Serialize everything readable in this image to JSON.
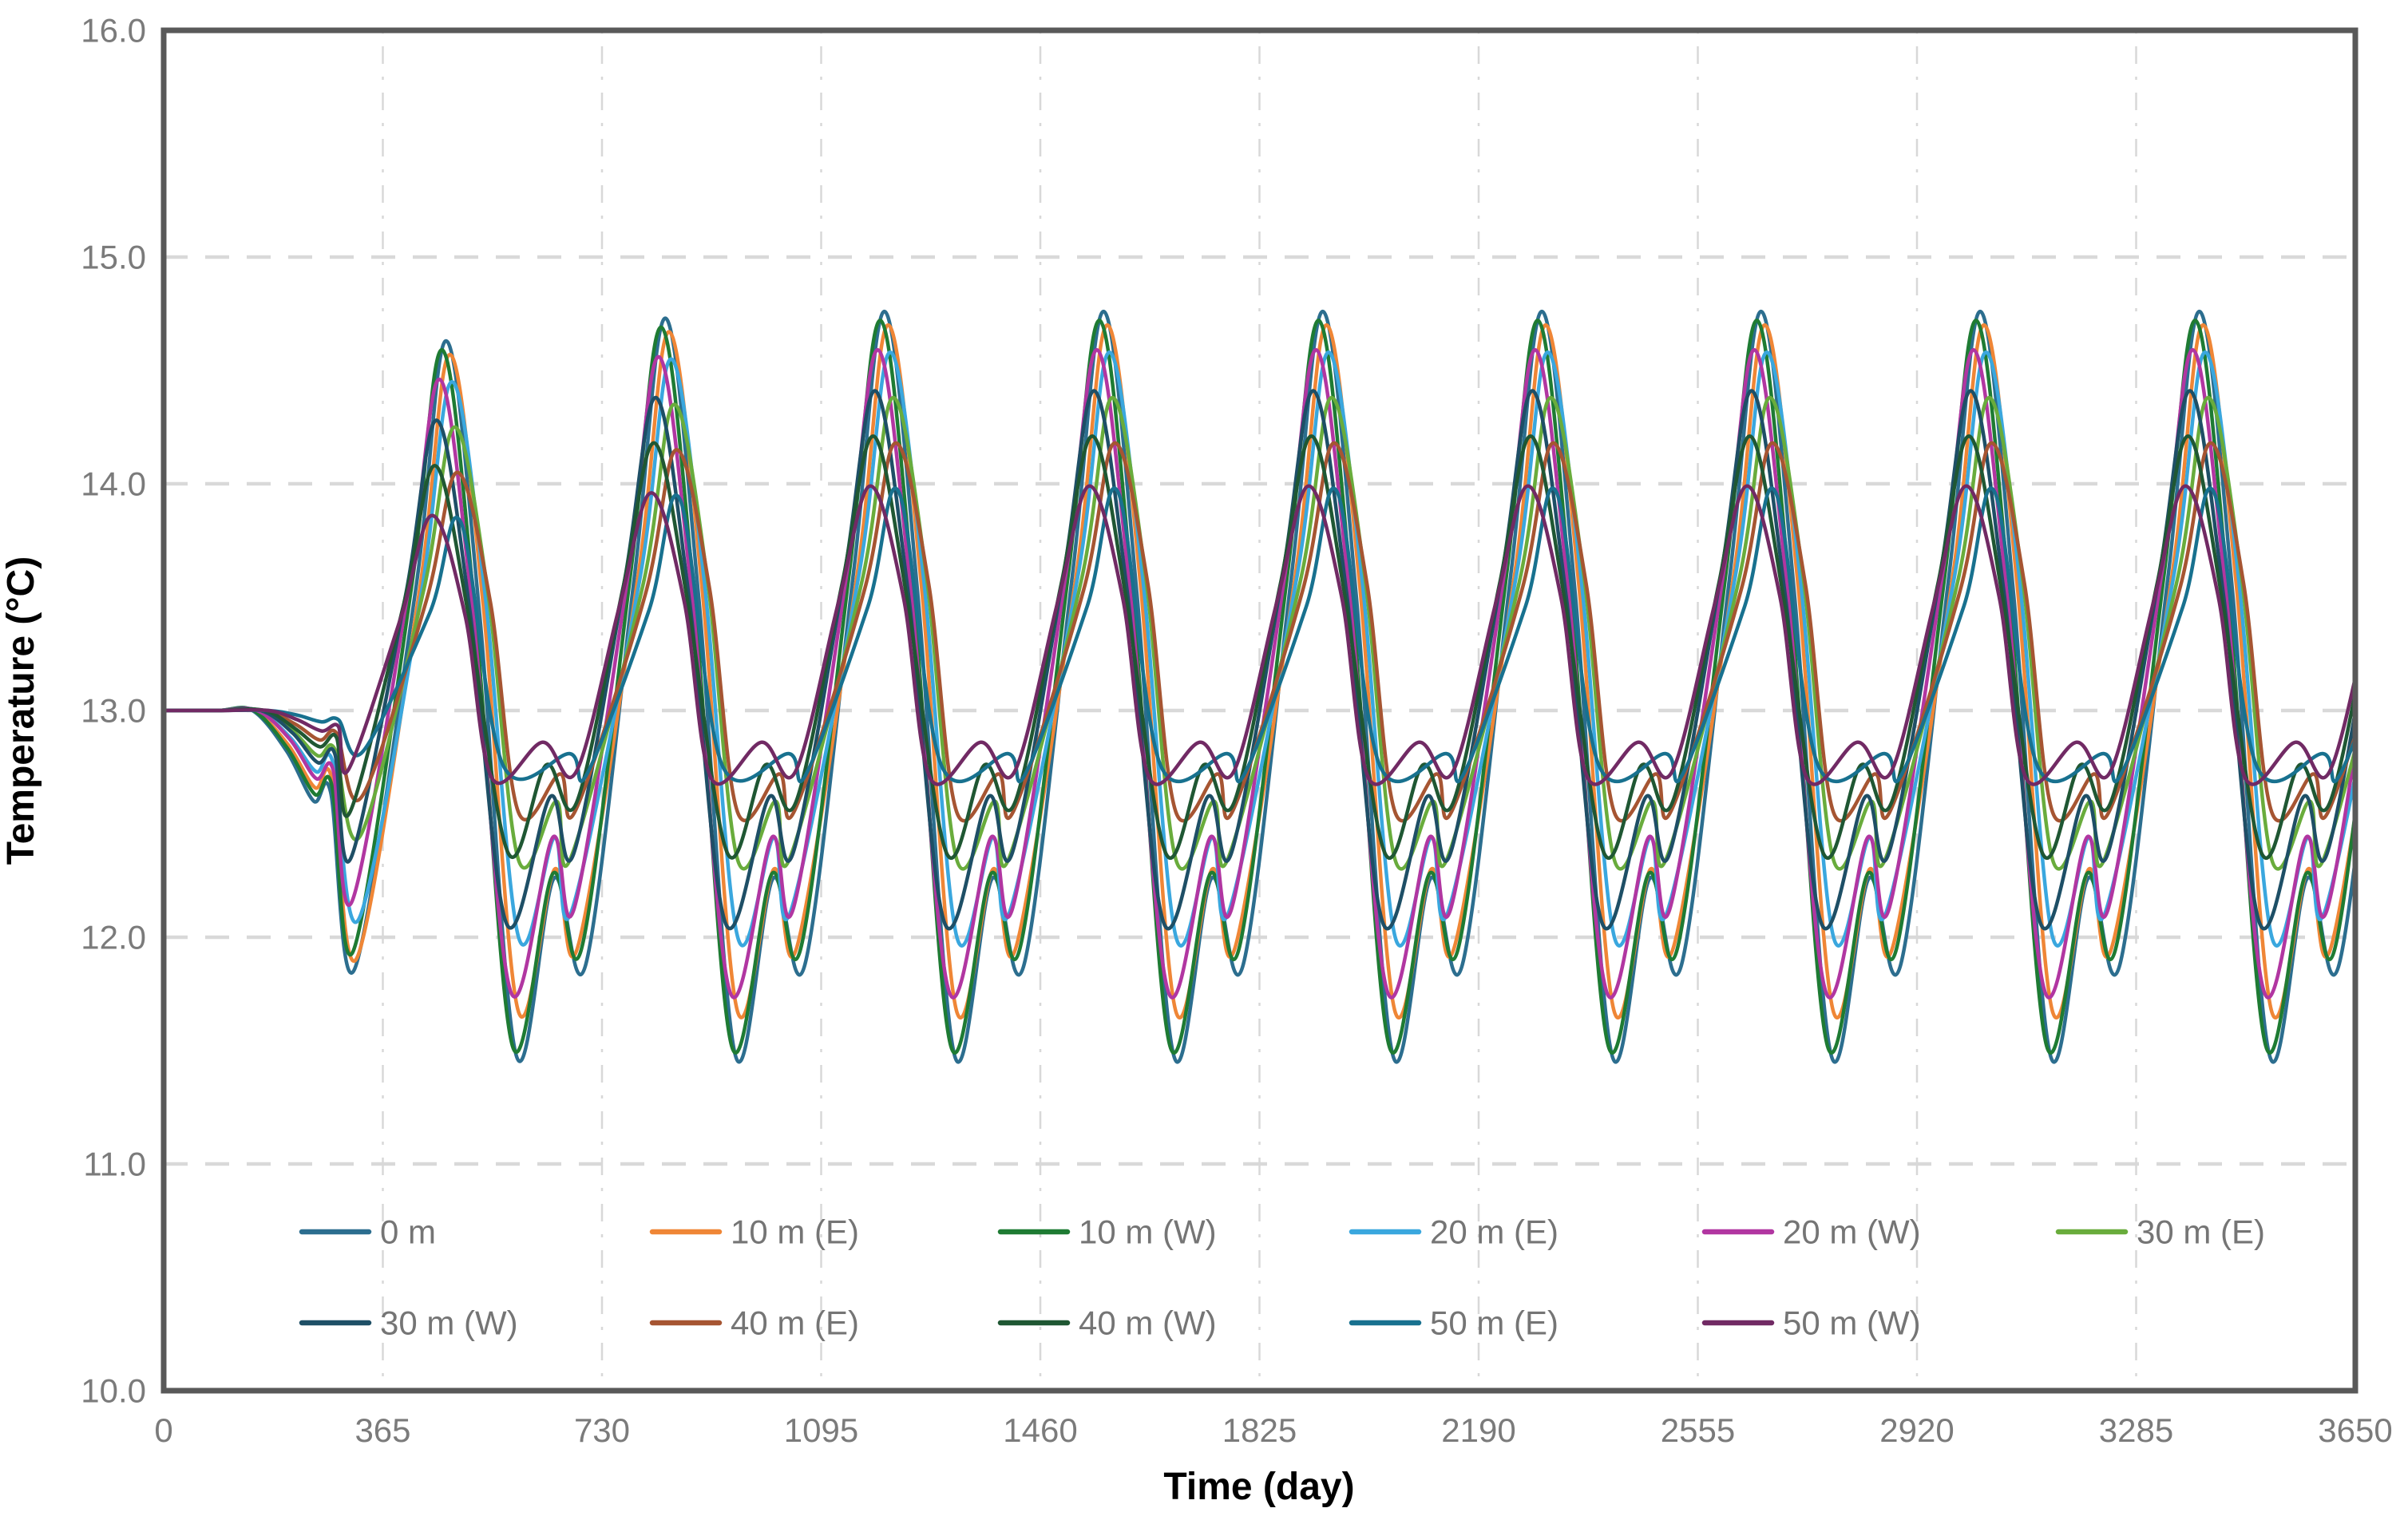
{
  "chart_data": {
    "type": "line",
    "title": "",
    "xlabel": "Time (day)",
    "ylabel": "Temperature (°C)",
    "xlim": [
      0,
      3650
    ],
    "ylim": [
      10,
      16
    ],
    "xticks": [
      0,
      365,
      730,
      1095,
      1460,
      1825,
      2190,
      2555,
      2920,
      3285,
      3650
    ],
    "yticks": [
      "10.0",
      "11.0",
      "12.0",
      "13.0",
      "14.0",
      "15.0",
      "16.0"
    ],
    "grid": {
      "horizontal": "dashed",
      "vertical": "dash-dot"
    },
    "legend_position": "inside-bottom",
    "initial_temperature": 13.0,
    "period_days": 365,
    "years": 10,
    "series": [
      {
        "name": "0 m",
        "color": "#2C6E8F",
        "points_transient": [
          [
            0,
            13
          ],
          [
            90,
            13
          ],
          [
            148,
            13
          ],
          [
            205,
            12.82
          ],
          [
            250,
            12.6
          ],
          [
            278,
            12.64
          ],
          [
            318,
            11.86
          ]
        ],
        "points_year1": [
          [
            419,
            13.52
          ],
          [
            471,
            14.63
          ],
          [
            526,
            13.43
          ],
          [
            587,
            11.48
          ],
          [
            650,
            12.26
          ],
          [
            703,
            11.88
          ]
        ],
        "points_year2": [
          [
            784,
            13.59
          ],
          [
            836,
            14.73
          ],
          [
            891,
            13.5
          ],
          [
            952,
            11.48
          ],
          [
            1015,
            12.26
          ],
          [
            1068,
            11.88
          ]
        ],
        "annual_cycle_rel": [
          [
            54,
            13.61
          ],
          [
            106,
            14.76
          ],
          [
            161,
            13.51
          ],
          [
            222,
            11.48
          ],
          [
            285,
            12.26
          ],
          [
            338,
            11.88
          ]
        ]
      },
      {
        "name": "10 m (E)",
        "color": "#EF8636",
        "points_transient": [
          [
            0,
            13
          ],
          [
            90,
            13
          ],
          [
            150,
            13
          ],
          [
            207,
            12.85
          ],
          [
            252,
            12.66
          ],
          [
            280,
            12.7
          ],
          [
            322,
            11.91
          ]
        ],
        "points_year1": [
          [
            425,
            13.51
          ],
          [
            477,
            14.57
          ],
          [
            532,
            13.47
          ],
          [
            590,
            11.68
          ],
          [
            651,
            12.3
          ],
          [
            690,
            11.96
          ]
        ],
        "points_year2": [
          [
            790,
            13.59
          ],
          [
            842,
            14.67
          ],
          [
            897,
            13.53
          ],
          [
            955,
            11.68
          ],
          [
            1016,
            12.3
          ],
          [
            1055,
            11.96
          ]
        ],
        "annual_cycle_rel": [
          [
            60,
            13.6
          ],
          [
            112,
            14.7
          ],
          [
            167,
            13.55
          ],
          [
            225,
            11.68
          ],
          [
            286,
            12.3
          ],
          [
            325,
            11.96
          ]
        ]
      },
      {
        "name": "10 m (W)",
        "color": "#1E7B33",
        "points_transient": [
          [
            0,
            13
          ],
          [
            90,
            13
          ],
          [
            150,
            13
          ],
          [
            207,
            12.83
          ],
          [
            252,
            12.63
          ],
          [
            280,
            12.67
          ],
          [
            316,
            11.94
          ]
        ],
        "points_year1": [
          [
            412,
            13.53
          ],
          [
            464,
            14.59
          ],
          [
            519,
            13.42
          ],
          [
            581,
            11.52
          ],
          [
            648,
            12.28
          ],
          [
            696,
            11.95
          ]
        ],
        "points_year2": [
          [
            777,
            13.59
          ],
          [
            829,
            14.69
          ],
          [
            884,
            13.49
          ],
          [
            946,
            11.52
          ],
          [
            1013,
            12.28
          ],
          [
            1061,
            11.95
          ]
        ],
        "annual_cycle_rel": [
          [
            47,
            13.61
          ],
          [
            99,
            14.72
          ],
          [
            154,
            13.5
          ],
          [
            216,
            11.52
          ],
          [
            283,
            12.28
          ],
          [
            331,
            11.95
          ]
        ]
      },
      {
        "name": "20 m (E)",
        "color": "#3AA7DE",
        "points_transient": [
          [
            0,
            13
          ],
          [
            90,
            13
          ],
          [
            156,
            13
          ],
          [
            211,
            12.88
          ],
          [
            254,
            12.73
          ],
          [
            282,
            12.77
          ],
          [
            325,
            12.08
          ]
        ],
        "points_year1": [
          [
            428,
            13.5
          ],
          [
            480,
            14.45
          ],
          [
            535,
            13.52
          ],
          [
            591,
            12.0
          ],
          [
            651,
            12.44
          ],
          [
            680,
            12.12
          ]
        ],
        "points_year2": [
          [
            793,
            13.58
          ],
          [
            845,
            14.55
          ],
          [
            900,
            13.58
          ],
          [
            956,
            12.0
          ],
          [
            1016,
            12.44
          ],
          [
            1045,
            12.12
          ]
        ],
        "annual_cycle_rel": [
          [
            63,
            13.6
          ],
          [
            115,
            14.58
          ],
          [
            170,
            13.6
          ],
          [
            226,
            12.0
          ],
          [
            286,
            12.44
          ],
          [
            315,
            12.12
          ]
        ]
      },
      {
        "name": "20 m (W)",
        "color": "#B136A1",
        "points_transient": [
          [
            0,
            13
          ],
          [
            90,
            13
          ],
          [
            156,
            13
          ],
          [
            211,
            12.87
          ],
          [
            254,
            12.7
          ],
          [
            282,
            12.74
          ],
          [
            314,
            12.16
          ]
        ],
        "points_year1": [
          [
            408,
            13.54
          ],
          [
            460,
            14.46
          ],
          [
            515,
            13.43
          ],
          [
            578,
            11.76
          ],
          [
            648,
            12.44
          ],
          [
            684,
            12.13
          ]
        ],
        "points_year2": [
          [
            773,
            13.59
          ],
          [
            825,
            14.56
          ],
          [
            880,
            13.5
          ],
          [
            943,
            11.76
          ],
          [
            1013,
            12.44
          ],
          [
            1049,
            12.13
          ]
        ],
        "annual_cycle_rel": [
          [
            43,
            13.61
          ],
          [
            95,
            14.59
          ],
          [
            150,
            13.51
          ],
          [
            213,
            11.76
          ],
          [
            283,
            12.44
          ],
          [
            319,
            12.13
          ]
        ]
      },
      {
        "name": "30 m (E)",
        "color": "#69AC3C",
        "points_transient": [
          [
            0,
            13
          ],
          [
            90,
            13
          ],
          [
            162,
            13
          ],
          [
            215,
            12.91
          ],
          [
            257,
            12.8
          ],
          [
            285,
            12.83
          ],
          [
            328,
            12.45
          ]
        ],
        "points_year1": [
          [
            433,
            13.53
          ],
          [
            485,
            14.25
          ],
          [
            540,
            13.52
          ],
          [
            591,
            12.34
          ],
          [
            654,
            12.6
          ],
          [
            678,
            12.35
          ]
        ],
        "points_year2": [
          [
            798,
            13.55
          ],
          [
            850,
            14.35
          ],
          [
            905,
            13.59
          ],
          [
            956,
            12.34
          ],
          [
            1019,
            12.6
          ],
          [
            1043,
            12.35
          ]
        ],
        "annual_cycle_rel": [
          [
            68,
            13.57
          ],
          [
            120,
            14.38
          ],
          [
            175,
            13.6
          ],
          [
            226,
            12.34
          ],
          [
            289,
            12.6
          ],
          [
            313,
            12.35
          ]
        ]
      },
      {
        "name": "30 m (W)",
        "color": "#1E4F66",
        "points_transient": [
          [
            0,
            13
          ],
          [
            90,
            13
          ],
          [
            162,
            13
          ],
          [
            215,
            12.9
          ],
          [
            257,
            12.77
          ],
          [
            285,
            12.81
          ],
          [
            312,
            12.35
          ]
        ],
        "points_year1": [
          [
            403,
            13.51
          ],
          [
            455,
            14.28
          ],
          [
            510,
            13.44
          ],
          [
            571,
            12.06
          ],
          [
            644,
            12.62
          ],
          [
            683,
            12.37
          ]
        ],
        "points_year2": [
          [
            768,
            13.58
          ],
          [
            820,
            14.38
          ],
          [
            875,
            13.5
          ],
          [
            936,
            12.06
          ],
          [
            1009,
            12.62
          ],
          [
            1048,
            12.37
          ]
        ],
        "annual_cycle_rel": [
          [
            38,
            13.59
          ],
          [
            90,
            14.41
          ],
          [
            145,
            13.52
          ],
          [
            206,
            12.06
          ],
          [
            279,
            12.62
          ],
          [
            318,
            12.37
          ]
        ]
      },
      {
        "name": "40 m (E)",
        "color": "#A65532",
        "points_transient": [
          [
            0,
            13
          ],
          [
            90,
            13
          ],
          [
            168,
            13
          ],
          [
            219,
            12.94
          ],
          [
            260,
            12.87
          ],
          [
            288,
            12.9
          ],
          [
            330,
            12.62
          ]
        ],
        "points_year1": [
          [
            437,
            13.48
          ],
          [
            489,
            14.05
          ],
          [
            544,
            13.48
          ],
          [
            591,
            12.55
          ],
          [
            660,
            12.72
          ],
          [
            686,
            12.56
          ]
        ],
        "points_year2": [
          [
            802,
            13.51
          ],
          [
            854,
            14.15
          ],
          [
            909,
            13.54
          ],
          [
            956,
            12.55
          ],
          [
            1025,
            12.72
          ],
          [
            1051,
            12.56
          ]
        ],
        "annual_cycle_rel": [
          [
            72,
            13.53
          ],
          [
            124,
            14.18
          ],
          [
            179,
            13.56
          ],
          [
            226,
            12.55
          ],
          [
            295,
            12.72
          ],
          [
            321,
            12.56
          ]
        ]
      },
      {
        "name": "40 m (W)",
        "color": "#1F5733",
        "points_transient": [
          [
            0,
            13
          ],
          [
            90,
            13
          ],
          [
            168,
            13
          ],
          [
            219,
            12.92
          ],
          [
            260,
            12.84
          ],
          [
            288,
            12.88
          ],
          [
            310,
            12.55
          ]
        ],
        "points_year1": [
          [
            400,
            13.47
          ],
          [
            452,
            14.08
          ],
          [
            507,
            13.43
          ],
          [
            574,
            12.37
          ],
          [
            637,
            12.76
          ],
          [
            687,
            12.59
          ]
        ],
        "points_year2": [
          [
            765,
            13.54
          ],
          [
            817,
            14.18
          ],
          [
            872,
            13.49
          ],
          [
            939,
            12.37
          ],
          [
            1002,
            12.76
          ],
          [
            1052,
            12.59
          ]
        ],
        "annual_cycle_rel": [
          [
            35,
            13.56
          ],
          [
            87,
            14.21
          ],
          [
            142,
            13.51
          ],
          [
            209,
            12.37
          ],
          [
            272,
            12.76
          ],
          [
            322,
            12.59
          ]
        ]
      },
      {
        "name": "50 m (E)",
        "color": "#18718F",
        "points_transient": [
          [
            0,
            13
          ],
          [
            90,
            13
          ],
          [
            174,
            13
          ],
          [
            222,
            12.98
          ],
          [
            263,
            12.95
          ],
          [
            291,
            12.96
          ],
          [
            332,
            12.82
          ]
        ],
        "points_year1": [
          [
            443,
            13.43
          ],
          [
            495,
            13.83
          ],
          [
            565,
            12.76
          ],
          [
            676,
            12.81
          ],
          [
            705,
            12.72
          ]
        ],
        "points_year2": [
          [
            808,
            13.44
          ],
          [
            860,
            13.93
          ],
          [
            930,
            12.76
          ],
          [
            1041,
            12.81
          ],
          [
            1070,
            12.72
          ]
        ],
        "annual_cycle_rel": [
          [
            78,
            13.46
          ],
          [
            130,
            13.96
          ],
          [
            200,
            12.76
          ],
          [
            311,
            12.81
          ],
          [
            340,
            12.72
          ]
        ]
      },
      {
        "name": "50 m (W)",
        "color": "#712A64",
        "points_transient": [
          [
            0,
            13
          ],
          [
            90,
            13
          ],
          [
            174,
            13
          ],
          [
            222,
            12.96
          ],
          [
            263,
            12.91
          ],
          [
            291,
            12.93
          ],
          [
            308,
            12.74
          ]
        ],
        "points_year1": [
          [
            395,
            13.41
          ],
          [
            447,
            13.86
          ],
          [
            502,
            13.42
          ],
          [
            547,
            12.7
          ],
          [
            631,
            12.86
          ],
          [
            687,
            12.73
          ]
        ],
        "points_year2": [
          [
            760,
            13.47
          ],
          [
            812,
            13.96
          ],
          [
            867,
            13.48
          ],
          [
            912,
            12.7
          ],
          [
            996,
            12.86
          ],
          [
            1052,
            12.73
          ]
        ],
        "annual_cycle_rel": [
          [
            30,
            13.49
          ],
          [
            82,
            13.99
          ],
          [
            137,
            13.5
          ],
          [
            182,
            12.7
          ],
          [
            266,
            12.86
          ],
          [
            322,
            12.73
          ]
        ]
      }
    ]
  },
  "style_colors": {
    "frame": "#595959",
    "grid_horizontal": "#D9D9D9",
    "grid_vertical": "#D8D8D8",
    "tick_label": "#7B7B7B",
    "legend_label": "#757575",
    "axis_title": "#000000",
    "background": "#FFFFFF"
  }
}
